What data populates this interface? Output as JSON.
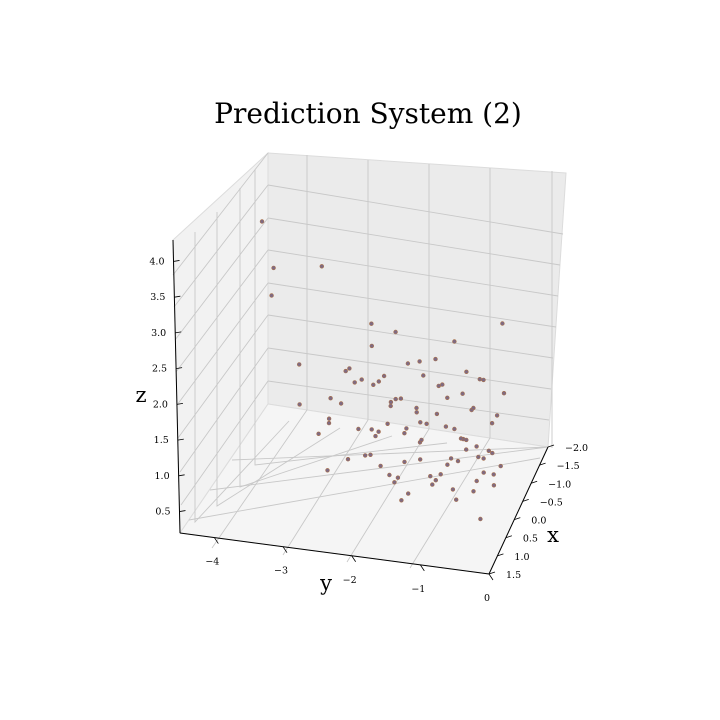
{
  "chart_data": {
    "type": "scatter",
    "title": "Prediction System (2)",
    "xlabel": "x",
    "ylabel": "y",
    "zlabel": "z",
    "x_ticks": [
      "−2.0",
      "−1.5",
      "−1.0",
      "−0.5",
      "0.0",
      "0.5",
      "1.0",
      "1.5"
    ],
    "y_ticks": [
      "−4",
      "−3",
      "−2",
      "−1",
      "0"
    ],
    "z_ticks": [
      "0.5",
      "1.0",
      "1.5",
      "2.0",
      "2.5",
      "3.0",
      "3.5",
      "4.0"
    ],
    "xlim": [
      -2.0,
      1.5
    ],
    "ylim": [
      -4.5,
      0.0
    ],
    "zlim": [
      0.2,
      4.3
    ],
    "grid": true,
    "colors": {
      "point_face": "#7f6a82",
      "point_edge": "#a8704a",
      "pane": "#f2f2f2"
    },
    "points": [
      [
        -1.9,
        -4.0,
        1.9
      ],
      [
        -1.2,
        -3.8,
        2.7
      ],
      [
        0.3,
        -3.6,
        4.2
      ],
      [
        -0.8,
        -3.0,
        3.1
      ],
      [
        -1.5,
        -3.5,
        1.2
      ],
      [
        -0.3,
        -3.2,
        1.3
      ],
      [
        0.2,
        -2.8,
        1.2
      ],
      [
        -1.0,
        -2.7,
        1.5
      ],
      [
        0.4,
        -2.6,
        1.5
      ],
      [
        0.8,
        -2.5,
        1.8
      ],
      [
        -0.4,
        -2.5,
        1.9
      ],
      [
        -1.3,
        -2.4,
        2.1
      ],
      [
        0.1,
        -2.3,
        2.0
      ],
      [
        0.9,
        -2.2,
        1.3
      ],
      [
        -0.6,
        -2.2,
        1.6
      ],
      [
        0.5,
        -2.1,
        2.3
      ],
      [
        -0.1,
        -2.0,
        1.2
      ],
      [
        1.1,
        -2.0,
        1.9
      ],
      [
        0.3,
        -1.9,
        2.2
      ],
      [
        -0.7,
        -1.9,
        2.4
      ],
      [
        0.6,
        -1.8,
        1.1
      ],
      [
        1.2,
        -1.8,
        1.6
      ],
      [
        -0.2,
        -1.7,
        1.7
      ],
      [
        0.8,
        -1.7,
        2.6
      ],
      [
        0.0,
        -1.6,
        1.3
      ],
      [
        1.0,
        -1.6,
        2.0
      ],
      [
        -0.9,
        -1.6,
        1.9
      ],
      [
        0.4,
        -1.5,
        1.1
      ],
      [
        1.3,
        -1.5,
        1.4
      ],
      [
        0.2,
        -1.5,
        2.5
      ],
      [
        -0.5,
        -1.4,
        1.2
      ],
      [
        0.7,
        -1.4,
        1.8
      ],
      [
        1.4,
        -1.3,
        1.1
      ],
      [
        0.1,
        -1.3,
        2.3
      ],
      [
        -0.3,
        -1.2,
        1.5
      ],
      [
        0.9,
        -1.2,
        2.2
      ],
      [
        0.5,
        -1.1,
        1.0
      ],
      [
        1.1,
        -1.1,
        1.6
      ],
      [
        -0.1,
        -1.0,
        1.9
      ],
      [
        0.6,
        -1.0,
        2.9
      ],
      [
        1.2,
        -0.9,
        1.3
      ],
      [
        0.3,
        -0.9,
        1.1
      ],
      [
        -0.6,
        -0.9,
        1.7
      ],
      [
        0.8,
        -0.8,
        2.0
      ],
      [
        1.4,
        -0.8,
        1.5
      ],
      [
        0.0,
        -0.7,
        1.2
      ],
      [
        0.7,
        -0.7,
        3.3
      ],
      [
        1.0,
        -0.6,
        1.0
      ],
      [
        0.4,
        -0.6,
        1.6
      ],
      [
        -0.4,
        -0.6,
        2.1
      ],
      [
        1.3,
        -0.5,
        1.8
      ],
      [
        0.2,
        -0.5,
        1.4
      ],
      [
        0.9,
        -0.4,
        2.4
      ],
      [
        0.6,
        -0.4,
        1.1
      ],
      [
        1.2,
        -0.3,
        1.3
      ],
      [
        -0.2,
        -0.3,
        1.7
      ],
      [
        0.5,
        -0.2,
        2.0
      ],
      [
        1.0,
        -0.2,
        1.5
      ],
      [
        0.8,
        -0.1,
        1.2
      ],
      [
        0.3,
        -0.1,
        3.5
      ],
      [
        1.1,
        -0.05,
        1.9
      ],
      [
        0.6,
        -0.05,
        1.4
      ],
      [
        1.4,
        -0.15,
        1.0
      ],
      [
        0.4,
        -0.35,
        2.6
      ],
      [
        0.8,
        -0.25,
        1.6
      ],
      [
        1.2,
        -0.45,
        2.1
      ],
      [
        -0.1,
        -0.8,
        1.3
      ],
      [
        0.5,
        -1.25,
        1.5
      ],
      [
        1.0,
        -1.45,
        1.2
      ],
      [
        0.2,
        -1.75,
        1.8
      ],
      [
        0.9,
        -1.95,
        1.4
      ],
      [
        -0.3,
        -2.15,
        1.1
      ],
      [
        0.7,
        -2.35,
        2.0
      ],
      [
        0.1,
        -2.65,
        1.7
      ],
      [
        1.3,
        -1.05,
        2.3
      ],
      [
        0.6,
        -0.55,
        2.8
      ],
      [
        0.0,
        -0.15,
        2.2
      ],
      [
        1.1,
        -0.65,
        1.7
      ],
      [
        0.3,
        -1.35,
        1.9
      ],
      [
        0.8,
        -1.55,
        1.0
      ],
      [
        -0.5,
        -1.85,
        1.5
      ],
      [
        1.2,
        -1.25,
        1.1
      ],
      [
        0.4,
        -0.95,
        2.4
      ],
      [
        0.9,
        -0.85,
        1.3
      ],
      [
        0.2,
        -0.25,
        1.0
      ],
      [
        1.0,
        -0.35,
        2.5
      ],
      [
        0.5,
        -0.75,
        1.8
      ],
      [
        1.4,
        -0.55,
        1.4
      ],
      [
        -0.2,
        -1.15,
        2.0
      ],
      [
        0.7,
        -1.85,
        1.6
      ],
      [
        0.1,
        -2.05,
        2.6
      ],
      [
        1.1,
        -2.45,
        1.2
      ],
      [
        0.3,
        -0.45,
        1.3
      ],
      [
        0.9,
        -0.15,
        1.8
      ],
      [
        0.6,
        -1.65,
        2.1
      ],
      [
        -0.4,
        -1.45,
        1.0
      ]
    ]
  }
}
